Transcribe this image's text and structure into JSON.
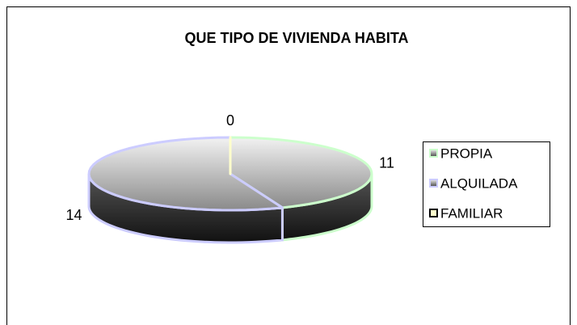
{
  "chart_data": {
    "type": "pie3d",
    "title": "QUE TIPO DE VIVIENDA HABITA",
    "categories": [
      "PROPIA",
      "ALQUILADA",
      "FAMILIAR"
    ],
    "values": [
      11,
      14,
      0
    ],
    "colors": [
      "#ccffcc",
      "#ccccff",
      "#ffffcc"
    ],
    "legend": "right"
  }
}
